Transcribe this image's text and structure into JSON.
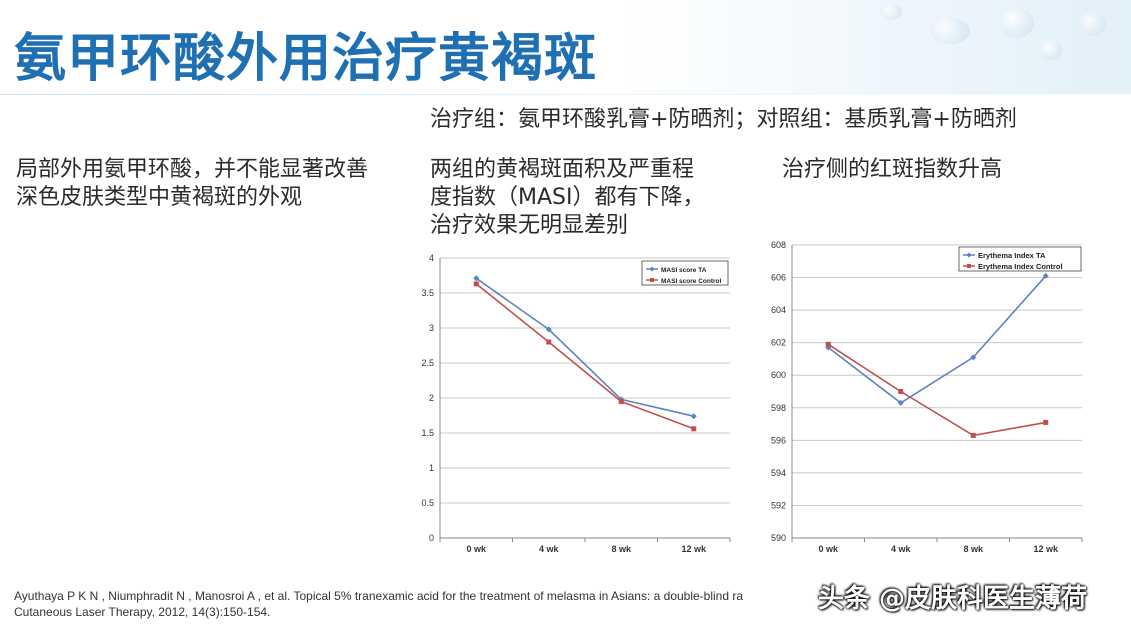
{
  "slide": {
    "title": "氨甲环酸外用治疗黄褐斑",
    "subtitle": "治疗组：氨甲环酸乳膏+防晒剂；对照组：基质乳膏+防晒剂",
    "left_text": [
      "局部外用氨甲环酸，并不能显著改善",
      "深色皮肤类型中黄褐斑的外观"
    ],
    "mid_text": [
      "两组的黄褐斑面积及严重程",
      "度指数（MASI）都有下降，",
      "治疗效果无明显差别"
    ],
    "right_text": "治疗侧的红斑指数升高",
    "reference": [
      "Ayuthaya P K N , Niumphradit N , Manosroi A , et al. Topical 5% tranexamic acid for the treatment of melasma in Asians: a double-blind ra",
      "Cutaneous Laser Therapy, 2012, 14(3):150-154."
    ],
    "watermark": "头条 @皮肤科医生薄荷"
  },
  "chart_data": [
    {
      "type": "line",
      "categories": [
        "0 wk",
        "4 wk",
        "8 wk",
        "12 wk"
      ],
      "series": [
        {
          "name": "MASI score TA",
          "values": [
            3.71,
            2.98,
            1.98,
            1.74
          ],
          "color": "#5b84bd"
        },
        {
          "name": "MASI score Control",
          "values": [
            3.63,
            2.8,
            1.95,
            1.56
          ],
          "color": "#c0504d"
        }
      ],
      "ylim": [
        0,
        4
      ],
      "yticks": [
        "0",
        "0.5",
        "1",
        "1.5",
        "2",
        "2.5",
        "3",
        "3.5",
        "4"
      ],
      "grid": true,
      "legend": "top-right"
    },
    {
      "type": "line",
      "categories": [
        "0 wk",
        "4 wk",
        "8 wk",
        "12 wk"
      ],
      "series": [
        {
          "name": "Erythema Index  TA",
          "values": [
            601.7,
            598.3,
            601.1,
            606.1
          ],
          "color": "#5b84bd"
        },
        {
          "name": "Erythema Index  Control",
          "values": [
            601.9,
            599,
            596.3,
            597.1
          ],
          "color": "#c0504d"
        }
      ],
      "ylim": [
        590,
        608
      ],
      "yticks": [
        "590",
        "592",
        "594",
        "596",
        "598",
        "600",
        "602",
        "604",
        "606",
        "608"
      ],
      "grid": true,
      "legend": "top-right"
    }
  ]
}
